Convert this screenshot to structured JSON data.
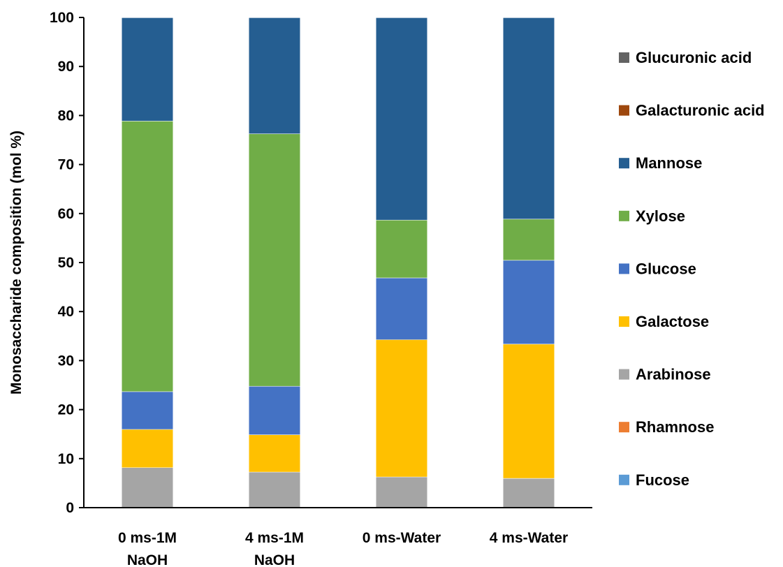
{
  "chart_data": {
    "type": "bar",
    "stacked": true,
    "ylabel": "Monosaccharide composition (mol %)",
    "xlabel": "",
    "ylim": [
      0,
      100
    ],
    "yticks": [
      0,
      10,
      20,
      30,
      40,
      50,
      60,
      70,
      80,
      90,
      100
    ],
    "grid": false,
    "legend_position": "right",
    "categories": [
      [
        "0 ms-1M",
        "NaOH"
      ],
      [
        "4 ms-1M",
        "NaOH"
      ],
      [
        "0 ms-Water"
      ],
      [
        "4 ms-Water"
      ]
    ],
    "series": [
      {
        "name": "Fucose",
        "color": "#5b9bd5",
        "values": [
          0,
          0,
          0,
          0
        ]
      },
      {
        "name": "Rhamnose",
        "color": "#ed7d31",
        "values": [
          0,
          0,
          0,
          0
        ]
      },
      {
        "name": "Arabinose",
        "color": "#a5a5a5",
        "values": [
          8.2,
          7.3,
          6.3,
          6.0
        ]
      },
      {
        "name": "Galactose",
        "color": "#ffc000",
        "values": [
          7.8,
          7.6,
          28.0,
          27.4
        ]
      },
      {
        "name": "Glucose",
        "color": "#4472c4",
        "values": [
          7.7,
          9.9,
          12.6,
          17.1
        ]
      },
      {
        "name": "Xylose",
        "color": "#70ad47",
        "values": [
          55.2,
          51.5,
          11.8,
          8.4
        ]
      },
      {
        "name": "Mannose",
        "color": "#255e91",
        "values": [
          21.1,
          23.7,
          41.3,
          41.1
        ]
      },
      {
        "name": "Galacturonic acid",
        "color": "#9e480e",
        "values": [
          0,
          0,
          0,
          0
        ]
      },
      {
        "name": "Glucuronic acid",
        "color": "#636363",
        "values": [
          0,
          0,
          0,
          0
        ]
      }
    ]
  }
}
